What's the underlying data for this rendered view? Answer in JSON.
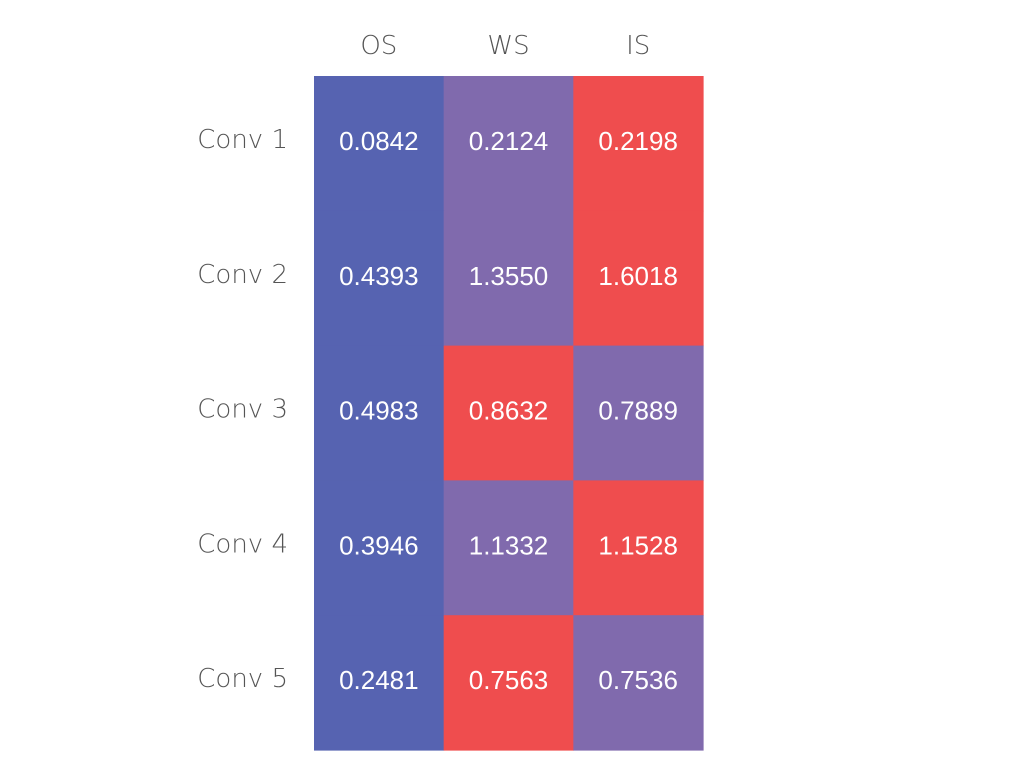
{
  "chart_data": {
    "type": "heatmap",
    "columns": [
      "OS",
      "WS",
      "IS"
    ],
    "rows": [
      "Conv 1",
      "Conv 2",
      "Conv 3",
      "Conv 4",
      "Conv 5"
    ],
    "values": [
      [
        "0.0842",
        "0.2124",
        "0.2198"
      ],
      [
        "0.4393",
        "1.3550",
        "1.6018"
      ],
      [
        "0.4983",
        "0.8632",
        "0.7889"
      ],
      [
        "0.3946",
        "1.1332",
        "1.1528"
      ],
      [
        "0.2481",
        "0.7563",
        "0.7536"
      ]
    ],
    "color_rule": "per row: highest value red, lowest blue, middle purple",
    "colors": {
      "low": "#5663b1",
      "mid": "#806aad",
      "high": "#ef4d4e"
    }
  }
}
